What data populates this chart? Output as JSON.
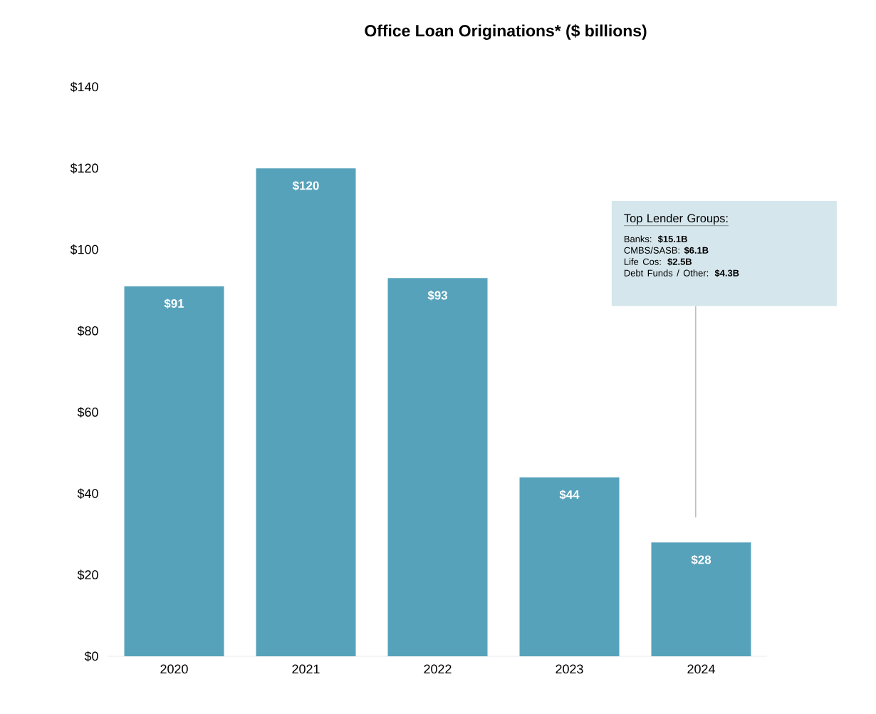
{
  "chart_data": {
    "type": "bar",
    "title": "Office Loan Originations* ($ billions)",
    "categories": [
      "2020",
      "2021",
      "2022",
      "2023",
      "2024"
    ],
    "values": [
      91,
      120,
      93,
      44,
      28
    ],
    "value_labels": [
      "$91",
      "$120",
      "$93",
      "$44",
      "$28"
    ],
    "color": "#57a2bb",
    "ylim": [
      0,
      140
    ],
    "yticks": [
      {
        "value": 0,
        "label": "$0"
      },
      {
        "value": 20,
        "label": "$20"
      },
      {
        "value": 40,
        "label": "$40"
      },
      {
        "value": 60,
        "label": "$60"
      },
      {
        "value": 80,
        "label": "$80"
      },
      {
        "value": 100,
        "label": "$100"
      },
      {
        "value": 120,
        "label": "$120"
      },
      {
        "value": 140,
        "label": "$140"
      }
    ],
    "annotations": [
      "Top Lender Groups:",
      "Banks: **$15.1B**",
      "CMBS/SASB: **$6.1B**",
      "Life Cos: **$2.5B**",
      "Debt Funds / Other: **$4.3B**"
    ]
  }
}
